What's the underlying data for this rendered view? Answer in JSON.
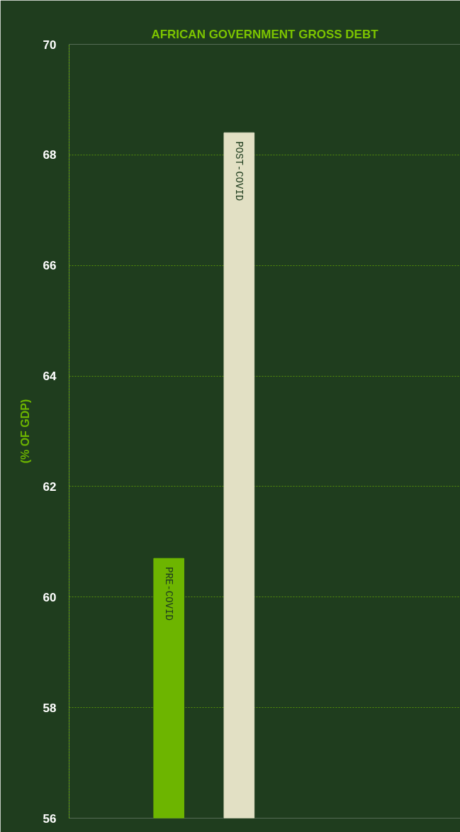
{
  "chart_data": {
    "type": "bar",
    "title": "AFRICAN GOVERNMENT GROSS DEBT",
    "ylabel": "(% OF GDP)",
    "categories": [
      "PRE-COVID",
      "POST-COVID"
    ],
    "values": [
      60.7,
      68.4
    ],
    "colors": [
      "#6db500",
      "#e2e0c4"
    ],
    "ylim": [
      56,
      70
    ],
    "yticks": [
      56,
      58,
      60,
      62,
      64,
      66,
      68,
      70
    ],
    "grid": "y"
  }
}
